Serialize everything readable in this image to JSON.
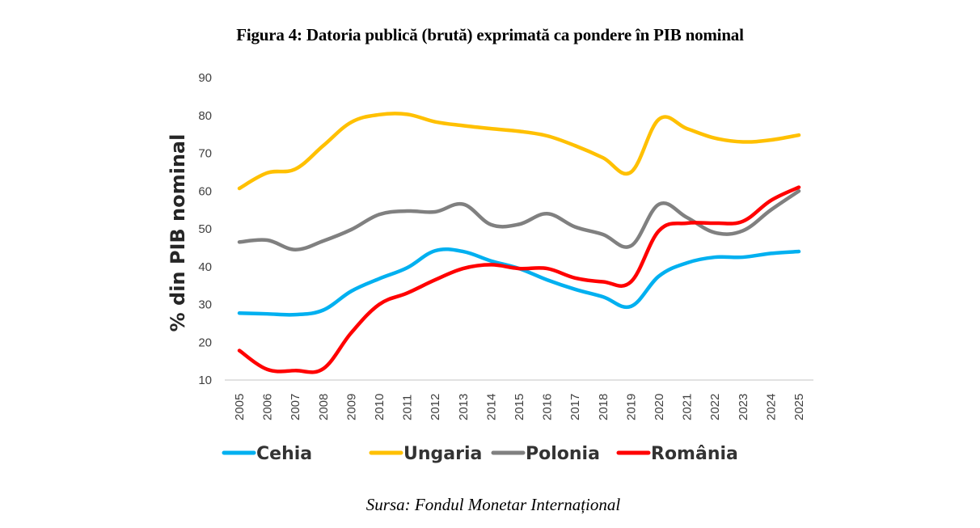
{
  "figure": {
    "title": "Figura 4: Datoria publică (brută) exprimată ca pondere în PIB nominal",
    "source": "Sursa: Fondul Monetar Internațional"
  },
  "chart_data": {
    "type": "line",
    "title": "Figura 4: Datoria publică (brută) exprimată ca pondere în PIB nominal",
    "xlabel": "",
    "ylabel": "% din PIB nominal",
    "ylim": [
      10,
      90
    ],
    "yticks": [
      "10",
      "20",
      "30",
      "40",
      "50",
      "60",
      "70",
      "80",
      "90"
    ],
    "grid": false,
    "legend_position": "bottom",
    "x": [
      "2005",
      "2006",
      "2007",
      "2008",
      "2009",
      "2010",
      "2011",
      "2012",
      "2013",
      "2014",
      "2015",
      "2016",
      "2017",
      "2018",
      "2019",
      "2020",
      "2021",
      "2022",
      "2023",
      "2024",
      "2025"
    ],
    "series": [
      {
        "name": "Cehia",
        "color": "#00B0F0",
        "values": [
          27.7,
          27.5,
          27.3,
          28.5,
          33.5,
          36.8,
          39.7,
          44.2,
          44.0,
          41.5,
          39.5,
          36.5,
          34.0,
          32.0,
          29.5,
          37.5,
          41.0,
          42.5,
          42.5,
          43.5,
          44.0
        ]
      },
      {
        "name": "Ungaria",
        "color": "#FFC000",
        "values": [
          60.7,
          64.8,
          65.8,
          72.0,
          78.2,
          80.2,
          80.3,
          78.3,
          77.3,
          76.5,
          75.8,
          74.6,
          72.0,
          68.8,
          65.0,
          79.0,
          76.5,
          74.0,
          73.0,
          73.5,
          74.8
        ]
      },
      {
        "name": "Polonia",
        "color": "#808080",
        "values": [
          46.5,
          47.0,
          44.5,
          46.8,
          49.8,
          53.8,
          54.7,
          54.5,
          56.5,
          51.1,
          51.2,
          54.0,
          50.5,
          48.5,
          45.5,
          56.5,
          53.0,
          49.0,
          49.5,
          55.0,
          60.0
        ]
      },
      {
        "name": "România",
        "color": "#FF0000",
        "values": [
          17.8,
          12.8,
          12.5,
          13.0,
          22.5,
          30.0,
          33.0,
          36.5,
          39.5,
          40.5,
          39.5,
          39.5,
          37.0,
          36.0,
          36.0,
          49.5,
          51.5,
          51.5,
          52.0,
          57.5,
          61.0
        ]
      }
    ]
  }
}
